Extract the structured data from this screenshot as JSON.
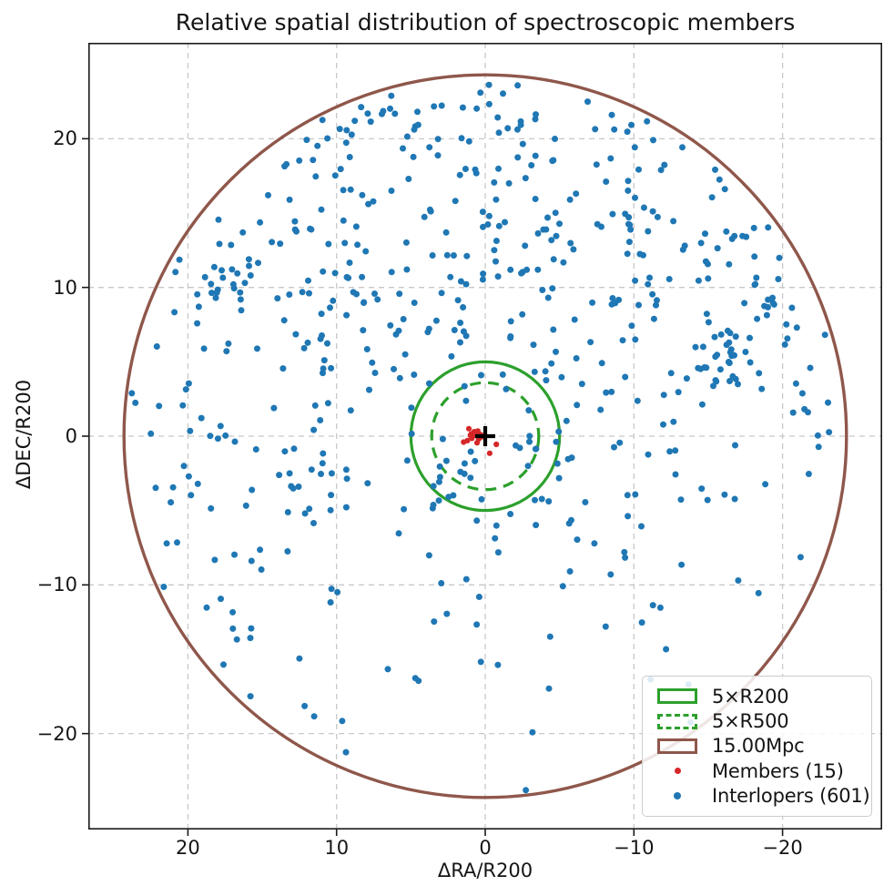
{
  "figure": {
    "title": "Relative spatial distribution of spectroscopic members",
    "xlabel": "ΔRA/R200",
    "ylabel": "ΔDEC/R200"
  },
  "axes": {
    "x_ticks": [
      "20",
      "10",
      "0",
      "−10",
      "−20"
    ],
    "x_tick_values": [
      20,
      10,
      0,
      -10,
      -20
    ],
    "y_ticks": [
      "20",
      "10",
      "0",
      "−10",
      "−20"
    ],
    "y_tick_values": [
      20,
      10,
      0,
      -10,
      -20
    ],
    "x_axis_inverted": true,
    "grid": "dashed"
  },
  "colors": {
    "blue": "#1f77b4",
    "red": "#d62728",
    "green": "#2ca02c",
    "brown": "#8f574b",
    "grid": "#c8c8c8",
    "spine": "#1a1a1a",
    "center_marker": "#000000",
    "background": "#ffffff"
  },
  "chart_data": {
    "type": "scatter",
    "title": "Relative spatial distribution of spectroscopic members",
    "xlabel": "ΔRA/R200",
    "ylabel": "ΔDEC/R200",
    "axes": {
      "xlim": [
        26.7,
        -26.7
      ],
      "ylim": [
        26.45,
        -26.45
      ],
      "x_inverted": true,
      "grid_on": true,
      "legend_position": "lower right"
    },
    "overlays": {
      "circles": [
        {
          "label": "5×R200",
          "center": [
            0,
            0
          ],
          "radius": 5.0,
          "style": "solid",
          "color_key": "green"
        },
        {
          "label": "5×R500",
          "center": [
            0,
            0
          ],
          "radius": 3.6,
          "style": "dashed",
          "color_key": "green"
        },
        {
          "label": "15.00Mpc",
          "center": [
            0,
            0
          ],
          "radius": 24.3,
          "style": "solid",
          "color_key": "brown"
        }
      ],
      "center_marker": {
        "x": 0,
        "y": 0,
        "symbol": "+",
        "color_key": "center_marker",
        "arm": 11,
        "stroke": 4.2
      }
    },
    "series": [
      {
        "name": "Members (15)",
        "color_key": "red",
        "count": 15,
        "marker_radius": 3.1,
        "points": [
          [
            1.1,
            0.5
          ],
          [
            0.5,
            0.35
          ],
          [
            0.3,
            0.1
          ],
          [
            0.65,
            0.05
          ],
          [
            0.9,
            -0.15
          ],
          [
            1.2,
            -0.3
          ],
          [
            1.45,
            -0.4
          ],
          [
            -0.75,
            -0.55
          ],
          [
            -0.3,
            -1.15
          ],
          [
            0.45,
            -0.2
          ],
          [
            0.75,
            0.3
          ],
          [
            0.95,
            0.15
          ],
          [
            0.55,
            -0.45
          ],
          [
            0.25,
            -0.05
          ],
          [
            1.0,
            0.05
          ]
        ]
      },
      {
        "name": "Interlopers (601)",
        "color_key": "blue",
        "count": 601,
        "marker_radius": 3.5,
        "distribution": {
          "note": "601 interlopers spread inside the 15 Mpc circle, denser in the upper half, sparse below DEC=-6",
          "seed": 1337,
          "max_radius": 23.8,
          "uniform_disk_radius": 24.0,
          "uniform_count": 387,
          "acceptance_bands": [
            {
              "y_above": 3,
              "p": 1.0
            },
            {
              "y_above": -6,
              "p": 0.7
            },
            {
              "y_above": -13,
              "p": 0.42
            },
            {
              "y_above": -99,
              "p": 0.25
            }
          ],
          "clusters": [
            {
              "x": -15.3,
              "y": 5.0,
              "sigma": 1.2,
              "n": 28
            },
            {
              "x": -13.0,
              "y": 11.8,
              "sigma": 2.2,
              "n": 20
            },
            {
              "x": 17.0,
              "y": 11.3,
              "sigma": 1.8,
              "n": 20
            },
            {
              "x": 9.5,
              "y": 8.3,
              "sigma": 1.6,
              "n": 18
            },
            {
              "x": 2.0,
              "y": 13.5,
              "sigma": 2.4,
              "n": 16
            },
            {
              "x": -4.0,
              "y": 9.5,
              "sigma": 2.6,
              "n": 16
            },
            {
              "x": 2.6,
              "y": -2.6,
              "sigma": 1.2,
              "n": 14
            },
            {
              "x": -6.0,
              "y": -1.2,
              "sigma": 2.4,
              "n": 14
            },
            {
              "x": 12.5,
              "y": -3.0,
              "sigma": 2.2,
              "n": 12
            },
            {
              "x": -1.5,
              "y": 21.3,
              "sigma": 2.2,
              "n": 12
            },
            {
              "x": 7.5,
              "y": 21.0,
              "sigma": 1.5,
              "n": 10
            },
            {
              "x": -19.5,
              "y": 8.5,
              "sigma": 1.8,
              "n": 10
            },
            {
              "x": 10.0,
              "y": 15.5,
              "sigma": 2.0,
              "n": 12
            },
            {
              "x": -9.0,
              "y": 16.5,
              "sigma": 2.2,
              "n": 12
            }
          ]
        }
      }
    ]
  },
  "legend": {
    "items": [
      {
        "label": "5×R200",
        "handle": "rect-solid-green"
      },
      {
        "label": "5×R500",
        "handle": "rect-dashed-green"
      },
      {
        "label": "15.00Mpc",
        "handle": "rect-solid-brown"
      },
      {
        "label": "Members (15)",
        "handle": "dot-red"
      },
      {
        "label": "Interlopers (601)",
        "handle": "dot-blue"
      }
    ]
  }
}
